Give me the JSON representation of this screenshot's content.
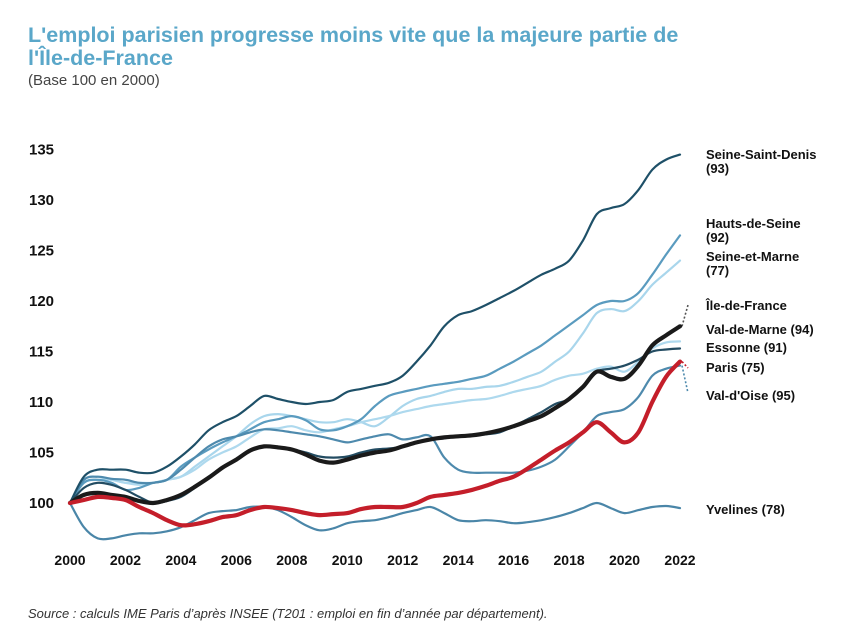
{
  "header": {
    "title": "L'emploi parisien progresse moins vite que la majeure partie de l'Île-de-France",
    "subtitle": "(Base 100 en 2000)"
  },
  "footer": {
    "source": "Source : calculs IME Paris d’après INSEE (T201 : emploi en fin d’année par département)."
  },
  "chart_data": {
    "type": "line",
    "title": "L'emploi parisien progresse moins vite que la majeure partie de l'Île-de-France",
    "subtitle": "(Base 100 en 2000)",
    "xlabel": "",
    "ylabel": "",
    "xlim": [
      2000,
      2022
    ],
    "ylim": [
      97,
      137
    ],
    "yticks": [
      100,
      105,
      110,
      115,
      120,
      125,
      130,
      135
    ],
    "xticks": [
      2000,
      2002,
      2004,
      2006,
      2008,
      2010,
      2012,
      2014,
      2016,
      2018,
      2020,
      2022
    ],
    "grid": false,
    "x": [
      2000,
      2000.5,
      2001,
      2001.5,
      2002,
      2002.5,
      2003,
      2003.5,
      2004,
      2004.5,
      2005,
      2005.5,
      2006,
      2006.5,
      2007,
      2007.5,
      2008,
      2008.5,
      2009,
      2009.5,
      2010,
      2010.5,
      2011,
      2011.5,
      2012,
      2012.5,
      2013,
      2013.5,
      2014,
      2014.5,
      2015,
      2015.5,
      2016,
      2016.5,
      2017,
      2017.5,
      2018,
      2018.5,
      2019,
      2019.5,
      2020,
      2020.5,
      2021,
      2021.5,
      2022
    ],
    "series": [
      {
        "name": "Seine-Saint-Denis",
        "code": "(93)",
        "color": "#1e5068",
        "values": [
          100,
          102.6,
          103.3,
          103.3,
          103.3,
          103.0,
          103.0,
          103.6,
          104.6,
          105.8,
          107.2,
          108.0,
          108.6,
          109.6,
          110.6,
          110.3,
          110.0,
          109.8,
          110.0,
          110.2,
          111.0,
          111.3,
          111.6,
          111.9,
          112.6,
          114.0,
          115.6,
          117.5,
          118.6,
          119.0,
          119.6,
          120.3,
          121.0,
          121.8,
          122.6,
          123.2,
          124.0,
          126.0,
          128.6,
          129.2,
          129.6,
          131.0,
          133.0,
          134.0,
          134.5
        ]
      },
      {
        "name": "Hauts-de-Seine",
        "code": "(92)",
        "color": "#5a9bbf",
        "values": [
          100,
          102.0,
          102.3,
          102.0,
          101.3,
          101.5,
          102.0,
          102.3,
          103.6,
          104.5,
          105.3,
          106.0,
          106.6,
          107.3,
          108.0,
          108.3,
          108.6,
          108.2,
          107.3,
          107.2,
          107.6,
          108.3,
          109.6,
          110.6,
          111.0,
          111.3,
          111.6,
          111.8,
          112.0,
          112.3,
          112.6,
          113.3,
          114.0,
          114.8,
          115.6,
          116.6,
          117.6,
          118.6,
          119.6,
          120.0,
          120.0,
          120.8,
          122.6,
          124.6,
          126.5
        ]
      },
      {
        "name": "Seine-et-Marne",
        "code": "(77)",
        "color": "#a9d6ec",
        "values": [
          100,
          102.0,
          102.3,
          102.3,
          102.0,
          102.0,
          102.0,
          102.3,
          102.6,
          103.6,
          104.6,
          105.6,
          106.6,
          107.8,
          108.6,
          108.8,
          108.6,
          108.3,
          108.0,
          108.0,
          108.3,
          108.0,
          107.6,
          108.5,
          109.6,
          110.3,
          110.6,
          111.0,
          111.3,
          111.3,
          111.5,
          111.6,
          112.0,
          112.5,
          113.0,
          114.0,
          115.0,
          116.8,
          118.8,
          119.2,
          119.0,
          120.0,
          121.6,
          122.8,
          124.0
        ]
      },
      {
        "name": "Val-de-Marne",
        "code": "(94)",
        "color": "#aed9ee",
        "values": [
          100,
          102.3,
          102.6,
          102.3,
          102.0,
          101.8,
          102.0,
          102.3,
          102.6,
          103.3,
          104.3,
          105.0,
          105.6,
          106.5,
          107.3,
          107.4,
          107.6,
          107.2,
          107.0,
          107.3,
          107.6,
          108.0,
          108.3,
          108.6,
          109.0,
          109.3,
          109.6,
          109.8,
          110.0,
          110.2,
          110.3,
          110.6,
          111.0,
          111.3,
          111.6,
          112.2,
          112.6,
          112.8,
          113.3,
          113.5,
          113.0,
          114.0,
          115.3,
          115.9,
          116.0
        ]
      },
      {
        "name": "Essonne",
        "code": "(91)",
        "color": "#234c62",
        "values": [
          100,
          101.5,
          102.0,
          101.8,
          101.3,
          100.6,
          100.0,
          100.2,
          100.6,
          101.5,
          102.6,
          103.5,
          104.3,
          105.3,
          105.6,
          105.5,
          105.3,
          105.0,
          104.6,
          104.5,
          104.6,
          105.0,
          105.3,
          105.4,
          105.6,
          106.0,
          106.3,
          106.4,
          106.6,
          106.7,
          106.8,
          107.0,
          107.6,
          108.3,
          109.0,
          109.8,
          110.3,
          111.6,
          113.0,
          113.3,
          113.6,
          114.2,
          115.0,
          115.2,
          115.3
        ]
      },
      {
        "name": "Val-d'Oise",
        "code": "(95)",
        "color": "#4e8aad",
        "values": [
          100,
          102.3,
          102.6,
          102.4,
          102.3,
          102.0,
          102.0,
          102.3,
          103.3,
          104.5,
          105.6,
          106.3,
          106.6,
          107.0,
          107.3,
          107.2,
          107.0,
          106.8,
          106.6,
          106.3,
          106.0,
          106.3,
          106.6,
          106.8,
          106.3,
          106.5,
          106.6,
          104.5,
          103.3,
          103.0,
          103.0,
          103.0,
          103.0,
          103.2,
          103.6,
          104.3,
          105.6,
          107.0,
          108.6,
          109.0,
          109.3,
          110.5,
          112.6,
          113.3,
          113.6
        ]
      },
      {
        "name": "Yvelines",
        "code": "(78)",
        "color": "#4a86a8",
        "values": [
          100,
          97.6,
          96.5,
          96.5,
          96.8,
          97.0,
          97.0,
          97.2,
          97.6,
          98.3,
          99.0,
          99.2,
          99.3,
          99.6,
          99.6,
          99.3,
          98.6,
          97.8,
          97.3,
          97.5,
          98.0,
          98.2,
          98.3,
          98.6,
          99.0,
          99.3,
          99.6,
          99.0,
          98.3,
          98.2,
          98.3,
          98.2,
          98.0,
          98.1,
          98.3,
          98.6,
          99.0,
          99.5,
          100.0,
          99.5,
          99.0,
          99.3,
          99.6,
          99.7,
          99.5
        ]
      },
      {
        "name": "Île-de-France",
        "code": "",
        "color": "#1a1a1a",
        "values": [
          100,
          100.8,
          101.0,
          100.8,
          100.6,
          100.2,
          100.0,
          100.3,
          100.8,
          101.6,
          102.5,
          103.5,
          104.3,
          105.2,
          105.6,
          105.5,
          105.3,
          104.8,
          104.2,
          104.0,
          104.3,
          104.7,
          105.0,
          105.2,
          105.6,
          106.0,
          106.3,
          106.5,
          106.6,
          106.7,
          106.9,
          107.2,
          107.6,
          108.1,
          108.6,
          109.4,
          110.3,
          111.5,
          113.0,
          112.5,
          112.3,
          113.6,
          115.6,
          116.6,
          117.5
        ]
      },
      {
        "name": "Paris",
        "code": "(75)",
        "color": "#c41e2a",
        "values": [
          100,
          100.3,
          100.6,
          100.5,
          100.3,
          99.6,
          99.0,
          98.3,
          97.8,
          97.9,
          98.2,
          98.6,
          98.8,
          99.3,
          99.6,
          99.5,
          99.3,
          99.0,
          98.8,
          98.9,
          99.0,
          99.4,
          99.6,
          99.6,
          99.6,
          100.0,
          100.6,
          100.8,
          101.0,
          101.3,
          101.7,
          102.2,
          102.6,
          103.4,
          104.3,
          105.2,
          106.0,
          107.0,
          108.0,
          107.0,
          106.0,
          107.0,
          110.0,
          112.5,
          114.0
        ]
      }
    ]
  }
}
